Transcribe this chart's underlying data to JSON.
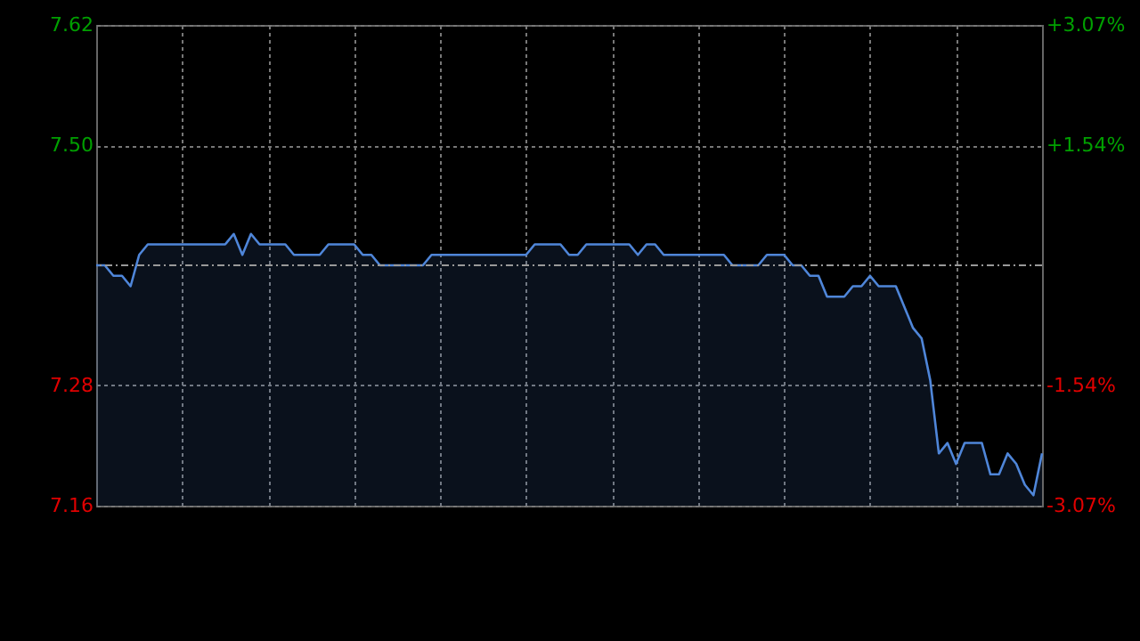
{
  "chart_data": {
    "type": "area",
    "color": "#4f86d9",
    "categories": [
      null,
      null,
      null,
      null,
      null,
      null,
      null,
      null,
      null,
      null,
      null,
      null,
      null,
      null,
      null,
      null,
      null,
      null,
      null,
      null,
      null,
      null,
      null,
      null,
      null,
      null,
      null,
      null,
      null,
      null,
      null,
      null,
      null,
      null,
      null,
      null,
      null,
      null,
      null,
      null,
      null,
      null,
      null,
      null,
      null,
      null,
      null,
      null,
      null,
      null,
      null,
      null,
      null,
      null,
      null,
      null,
      null,
      null,
      null,
      null,
      null,
      null,
      null,
      null,
      null,
      null,
      null,
      null,
      null,
      null,
      null,
      null,
      null,
      null,
      null,
      null,
      null,
      null,
      null,
      null,
      null,
      null,
      null,
      null,
      null,
      null,
      null,
      null,
      null,
      null,
      null,
      null,
      null,
      null,
      null,
      null,
      null,
      null,
      null,
      null,
      null,
      null,
      null,
      null,
      null,
      null,
      null,
      null,
      null,
      null,
      null
    ],
    "values": [
      7.39,
      7.39,
      7.38,
      7.38,
      7.37,
      7.4,
      7.41,
      7.41,
      7.41,
      7.41,
      7.41,
      7.41,
      7.41,
      7.41,
      7.41,
      7.41,
      7.42,
      7.4,
      7.42,
      7.41,
      7.41,
      7.41,
      7.41,
      7.4,
      7.4,
      7.4,
      7.4,
      7.41,
      7.41,
      7.41,
      7.41,
      7.4,
      7.4,
      7.39,
      7.39,
      7.39,
      7.39,
      7.39,
      7.39,
      7.4,
      7.4,
      7.4,
      7.4,
      7.4,
      7.4,
      7.4,
      7.4,
      7.4,
      7.4,
      7.4,
      7.4,
      7.41,
      7.41,
      7.41,
      7.41,
      7.4,
      7.4,
      7.41,
      7.41,
      7.41,
      7.41,
      7.41,
      7.41,
      7.4,
      7.41,
      7.41,
      7.4,
      7.4,
      7.4,
      7.4,
      7.4,
      7.4,
      7.4,
      7.4,
      7.39,
      7.39,
      7.39,
      7.39,
      7.4,
      7.4,
      7.4,
      7.39,
      7.39,
      7.38,
      7.38,
      7.36,
      7.36,
      7.36,
      7.37,
      7.37,
      7.38,
      7.37,
      7.37,
      7.37,
      7.35,
      7.33,
      7.32,
      7.28,
      7.21,
      7.22,
      7.2,
      7.22,
      7.22,
      7.22,
      7.19,
      7.19,
      7.21,
      7.2,
      7.18,
      7.17,
      7.21
    ],
    "ylim": [
      7.16,
      7.62
    ],
    "yticks": [
      7.62,
      {
        "value": 7.505,
        "label": "7.50"
      },
      {
        "value": 7.275,
        "label": "7.28"
      },
      7.16
    ],
    "y2lim": [
      -3.07,
      3.07
    ],
    "y2ticks": [
      {
        "value": 3.07,
        "label": "+3.07%"
      },
      {
        "value": 1.54,
        "label": "+1.54%"
      },
      {
        "value": -1.54,
        "label": "-1.54%"
      },
      {
        "value": -3.07,
        "label": "-3.07%"
      }
    ],
    "ref_lines": [
      {
        "axis": "y",
        "value": 7.39,
        "color": "#999999",
        "line_style": "dashed"
      }
    ],
    "grid": true
  }
}
